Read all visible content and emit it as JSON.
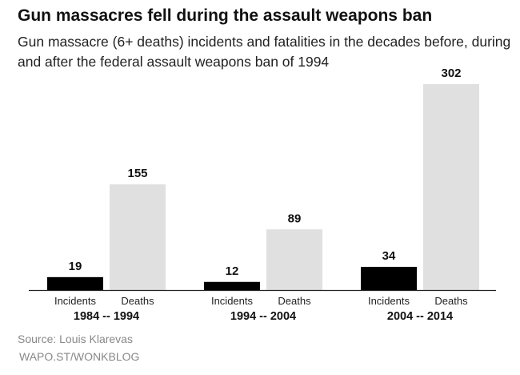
{
  "chart_data": {
    "type": "bar",
    "title": "Gun massacres fell during the assault weapons ban",
    "subtitle": "Gun massacre (6+ deaths) incidents and fatalities in the decades before, during and after the federal assault weapons ban of 1994",
    "categories": [
      "1984 -- 1994",
      "1994 -- 2004",
      "2004 -- 2014"
    ],
    "series": [
      {
        "name": "Incidents",
        "values": [
          19,
          12,
          34
        ],
        "color": "#000000"
      },
      {
        "name": "Deaths",
        "values": [
          155,
          89,
          302
        ],
        "color": "#e0e0e0"
      }
    ],
    "ylim": [
      0,
      302
    ],
    "grid": false,
    "xlabel": "",
    "ylabel": ""
  },
  "footer": {
    "source": "Source: Louis Klarevas",
    "credit": "WAPO.ST/WONKBLOG"
  }
}
